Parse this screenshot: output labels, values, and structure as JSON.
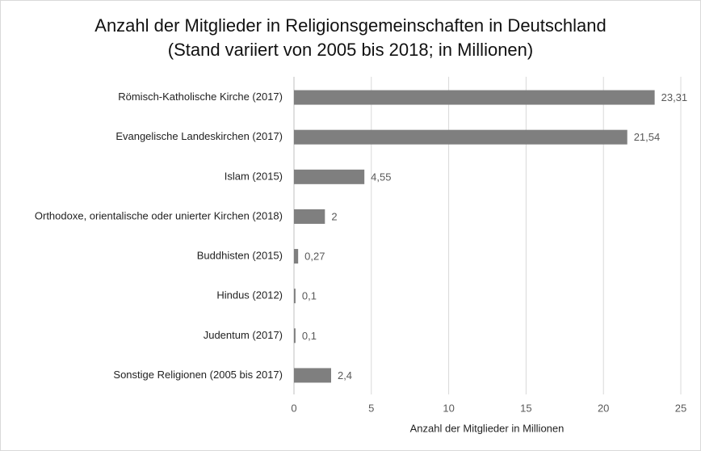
{
  "chart_data": {
    "type": "barh",
    "title": "Anzahl der Mitglieder in Religionsgemeinschaften in Deutschland",
    "subtitle": "(Stand variiert von 2005 bis 2018; in Millionen)",
    "x_label": "Anzahl der Mitglieder in Millionen",
    "categories": [
      "Römisch-Katholische Kirche (2017)",
      "Evangelische Landeskirchen (2017)",
      "Islam (2015)",
      "Orthodoxe, orientalische oder unierter Kirchen (2018)",
      "Buddhisten (2015)",
      "Hindus (2012)",
      "Judentum (2017)",
      "Sonstige Religionen (2005 bis 2017)"
    ],
    "values": [
      23.31,
      21.54,
      4.55,
      2,
      0.27,
      0.1,
      0.1,
      2.4
    ],
    "value_labels": [
      "23,31",
      "21,54",
      "4,55",
      "2",
      "0,27",
      "0,1",
      "0,1",
      "2,4"
    ],
    "color": "#7f7f7f",
    "xlim": [
      0,
      25
    ],
    "xticks": [
      0,
      5,
      10,
      15,
      20,
      25
    ],
    "grid": true
  }
}
